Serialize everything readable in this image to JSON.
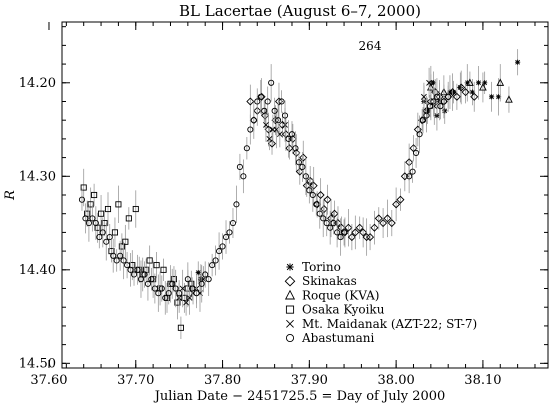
{
  "chart_data": {
    "type": "scatter",
    "title": "BL Lacertae     (August 6–7, 2000)",
    "xlabel": "Julian Date  −  2451725.5  =  Day of July 2000",
    "ylabel": "R",
    "annotation": "264",
    "xlim": [
      37.615,
      38.175
    ],
    "ylim": [
      14.505,
      14.135
    ],
    "y_inverted": true,
    "x_ticks": [
      "37.60",
      "37.70",
      "37.80",
      "37.90",
      "38.00",
      "38.10"
    ],
    "y_ticks": [
      "14.20",
      "14.30",
      "14.40",
      "14.50"
    ],
    "legend_position": "lower-center",
    "error_bar_color": "#999999",
    "series": [
      {
        "name": "Torino",
        "marker": "asterisk",
        "points": [
          [
            37.772,
            14.403
          ],
          [
            37.775,
            14.41
          ],
          [
            38.032,
            14.22
          ],
          [
            38.036,
            14.23
          ],
          [
            38.04,
            14.2
          ],
          [
            38.043,
            14.2
          ],
          [
            38.047,
            14.235
          ],
          [
            38.05,
            14.22
          ],
          [
            38.056,
            14.23
          ],
          [
            38.062,
            14.21
          ],
          [
            38.066,
            14.21
          ],
          [
            38.074,
            14.205
          ],
          [
            38.082,
            14.2
          ],
          [
            38.088,
            14.21
          ],
          [
            38.095,
            14.2
          ],
          [
            38.102,
            14.2
          ],
          [
            38.11,
            14.215
          ],
          [
            38.118,
            14.215
          ],
          [
            38.14,
            14.178
          ]
        ]
      },
      {
        "name": "Skinakas",
        "marker": "diamond",
        "points": [
          [
            37.832,
            14.22
          ],
          [
            37.836,
            14.24
          ],
          [
            37.84,
            14.23
          ],
          [
            37.845,
            14.215
          ],
          [
            37.849,
            14.235
          ],
          [
            37.853,
            14.25
          ],
          [
            37.857,
            14.265
          ],
          [
            37.861,
            14.24
          ],
          [
            37.865,
            14.22
          ],
          [
            37.869,
            14.245
          ],
          [
            37.873,
            14.255
          ],
          [
            37.877,
            14.27
          ],
          [
            37.881,
            14.26
          ],
          [
            37.885,
            14.275
          ],
          [
            37.889,
            14.295
          ],
          [
            37.893,
            14.28
          ],
          [
            37.897,
            14.31
          ],
          [
            37.901,
            14.305
          ],
          [
            37.905,
            14.31
          ],
          [
            37.909,
            14.33
          ],
          [
            37.913,
            14.32
          ],
          [
            37.917,
            14.335
          ],
          [
            37.921,
            14.325
          ],
          [
            37.925,
            14.345
          ],
          [
            37.929,
            14.34
          ],
          [
            37.933,
            14.35
          ],
          [
            37.937,
            14.355
          ],
          [
            37.941,
            14.36
          ],
          [
            37.945,
            14.355
          ],
          [
            37.949,
            14.365
          ],
          [
            37.953,
            14.36
          ],
          [
            37.958,
            14.355
          ],
          [
            37.962,
            14.36
          ],
          [
            37.966,
            14.365
          ],
          [
            37.97,
            14.365
          ],
          [
            37.975,
            14.355
          ],
          [
            37.98,
            14.345
          ],
          [
            37.985,
            14.35
          ],
          [
            37.99,
            14.345
          ],
          [
            37.995,
            14.35
          ],
          [
            38.0,
            14.33
          ],
          [
            38.005,
            14.325
          ],
          [
            38.01,
            14.3
          ],
          [
            38.015,
            14.285
          ],
          [
            38.02,
            14.27
          ],
          [
            38.025,
            14.25
          ],
          [
            38.03,
            14.24
          ],
          [
            38.035,
            14.23
          ],
          [
            38.04,
            14.22
          ],
          [
            38.045,
            14.21
          ],
          [
            38.05,
            14.215
          ],
          [
            38.055,
            14.22
          ],
          [
            38.06,
            14.215
          ],
          [
            38.065,
            14.21
          ],
          [
            38.07,
            14.215
          ],
          [
            38.075,
            14.205
          ],
          [
            38.08,
            14.21
          ],
          [
            38.09,
            14.215
          ]
        ]
      },
      {
        "name": "Roque (KVA)",
        "marker": "triangle",
        "points": [
          [
            38.04,
            14.205
          ],
          [
            38.055,
            14.21
          ],
          [
            38.085,
            14.2
          ],
          [
            38.1,
            14.205
          ],
          [
            38.12,
            14.2
          ],
          [
            38.13,
            14.218
          ]
        ]
      },
      {
        "name": "Osaka Kyoiku",
        "marker": "square",
        "points": [
          [
            37.64,
            14.312
          ],
          [
            37.644,
            14.34
          ],
          [
            37.648,
            14.33
          ],
          [
            37.652,
            14.32
          ],
          [
            37.656,
            14.355
          ],
          [
            37.66,
            14.34
          ],
          [
            37.664,
            14.35
          ],
          [
            37.668,
            14.335
          ],
          [
            37.672,
            14.38
          ],
          [
            37.676,
            14.36
          ],
          [
            37.68,
            14.33
          ],
          [
            37.684,
            14.375
          ],
          [
            37.688,
            14.37
          ],
          [
            37.692,
            14.345
          ],
          [
            37.696,
            14.395
          ],
          [
            37.7,
            14.335
          ],
          [
            37.704,
            14.4
          ],
          [
            37.708,
            14.405
          ],
          [
            37.712,
            14.4
          ],
          [
            37.716,
            14.39
          ],
          [
            37.72,
            14.41
          ],
          [
            37.724,
            14.395
          ],
          [
            37.728,
            14.42
          ],
          [
            37.732,
            14.4
          ],
          [
            37.736,
            14.43
          ],
          [
            37.74,
            14.415
          ],
          [
            37.744,
            14.41
          ],
          [
            37.748,
            14.435
          ],
          [
            37.752,
            14.462
          ],
          [
            37.756,
            14.43
          ],
          [
            37.76,
            14.42
          ],
          [
            37.764,
            14.415
          ]
        ]
      },
      {
        "name": "Mt. Maidanak (AZT-22; ST-7)",
        "marker": "cross",
        "points": [
          [
            37.75,
            14.43
          ],
          [
            37.754,
            14.42
          ],
          [
            37.758,
            14.435
          ],
          [
            37.762,
            14.43
          ],
          [
            37.766,
            14.425
          ],
          [
            37.77,
            14.42
          ],
          [
            37.774,
            14.425
          ],
          [
            37.778,
            14.41
          ],
          [
            37.85,
            14.245
          ],
          [
            37.854,
            14.26
          ],
          [
            37.858,
            14.25
          ],
          [
            37.862,
            14.25
          ],
          [
            37.866,
            14.255
          ],
          [
            37.872,
            14.245
          ],
          [
            38.032,
            14.215
          ],
          [
            38.038,
            14.2
          ],
          [
            38.044,
            14.225
          ]
        ]
      },
      {
        "name": "Abastumani",
        "marker": "circle",
        "points": [
          [
            37.638,
            14.325
          ],
          [
            37.642,
            14.345
          ],
          [
            37.646,
            14.35
          ],
          [
            37.65,
            14.345
          ],
          [
            37.654,
            14.35
          ],
          [
            37.658,
            14.365
          ],
          [
            37.662,
            14.36
          ],
          [
            37.666,
            14.37
          ],
          [
            37.67,
            14.365
          ],
          [
            37.674,
            14.385
          ],
          [
            37.678,
            14.39
          ],
          [
            37.682,
            14.385
          ],
          [
            37.686,
            14.39
          ],
          [
            37.69,
            14.395
          ],
          [
            37.694,
            14.4
          ],
          [
            37.698,
            14.405
          ],
          [
            37.702,
            14.4
          ],
          [
            37.706,
            14.41
          ],
          [
            37.71,
            14.405
          ],
          [
            37.714,
            14.415
          ],
          [
            37.718,
            14.41
          ],
          [
            37.722,
            14.42
          ],
          [
            37.726,
            14.425
          ],
          [
            37.73,
            14.42
          ],
          [
            37.734,
            14.43
          ],
          [
            37.738,
            14.425
          ],
          [
            37.742,
            14.415
          ],
          [
            37.746,
            14.42
          ],
          [
            37.75,
            14.425
          ],
          [
            37.76,
            14.41
          ],
          [
            37.765,
            14.42
          ],
          [
            37.77,
            14.425
          ],
          [
            37.776,
            14.415
          ],
          [
            37.78,
            14.405
          ],
          [
            37.784,
            14.41
          ],
          [
            37.788,
            14.395
          ],
          [
            37.792,
            14.39
          ],
          [
            37.796,
            14.38
          ],
          [
            37.8,
            14.375
          ],
          [
            37.804,
            14.365
          ],
          [
            37.808,
            14.36
          ],
          [
            37.812,
            14.35
          ],
          [
            37.816,
            14.33
          ],
          [
            37.82,
            14.29
          ],
          [
            37.824,
            14.3
          ],
          [
            37.828,
            14.27
          ],
          [
            37.832,
            14.25
          ],
          [
            37.836,
            14.24
          ],
          [
            37.84,
            14.22
          ],
          [
            37.844,
            14.215
          ],
          [
            37.848,
            14.23
          ],
          [
            37.852,
            14.22
          ],
          [
            37.856,
            14.2
          ],
          [
            37.86,
            14.23
          ],
          [
            37.864,
            14.24
          ],
          [
            37.868,
            14.22
          ],
          [
            37.872,
            14.235
          ],
          [
            37.876,
            14.26
          ],
          [
            37.88,
            14.255
          ],
          [
            37.884,
            14.27
          ],
          [
            37.888,
            14.285
          ],
          [
            37.892,
            14.29
          ],
          [
            37.896,
            14.3
          ],
          [
            37.9,
            14.315
          ],
          [
            37.904,
            14.32
          ],
          [
            37.908,
            14.33
          ],
          [
            37.912,
            14.34
          ],
          [
            37.916,
            14.345
          ],
          [
            37.92,
            14.35
          ],
          [
            37.924,
            14.355
          ],
          [
            37.928,
            14.35
          ],
          [
            37.932,
            14.36
          ],
          [
            37.936,
            14.365
          ],
          [
            37.94,
            14.36
          ],
          [
            38.015,
            14.3
          ],
          [
            38.019,
            14.295
          ],
          [
            38.023,
            14.275
          ],
          [
            38.027,
            14.255
          ],
          [
            38.031,
            14.24
          ],
          [
            38.035,
            14.235
          ],
          [
            38.039,
            14.225
          ],
          [
            38.043,
            14.22
          ],
          [
            38.047,
            14.215
          ],
          [
            38.051,
            14.225
          ],
          [
            38.055,
            14.22
          ],
          [
            38.06,
            14.215
          ]
        ]
      }
    ]
  }
}
